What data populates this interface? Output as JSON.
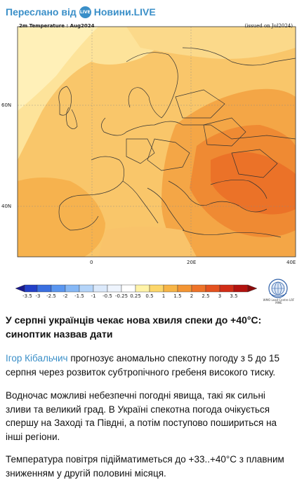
{
  "header": {
    "forward_label": "Переслано від",
    "channel_logo_text": "LIVE",
    "channel_name": "Новини.LIVE"
  },
  "map": {
    "title_left": "2m Temperature : Aug2024",
    "title_right": "(issued on Jul2024)",
    "lat_labels": [
      "60N",
      "40N"
    ],
    "lon_labels": [
      "0",
      "20E",
      "40E"
    ],
    "colorbar_ticks": [
      "-3.5",
      "-3",
      "-2.5",
      "-2",
      "-1.5",
      "-1",
      "-0.5",
      "-0.25",
      "0.25",
      "0.5",
      "1",
      "1.5",
      "2",
      "2.5",
      "3",
      "3.5"
    ],
    "colorbar_colors": [
      "#1a1a8c",
      "#2340c8",
      "#3a6fe0",
      "#5a96f0",
      "#86b8f6",
      "#b4d4f9",
      "#dbe9fb",
      "#ffffff",
      "#fff3a8",
      "#fcd66a",
      "#f7b547",
      "#f39534",
      "#ee7329",
      "#e4521f",
      "#d12d17",
      "#b3130f",
      "#8a0a0a"
    ],
    "wmo_caption": "WMO Lead Centre LRF MME"
  },
  "article": {
    "headline": "У серпні українців чекає нова хвиля спеки до +40°C: синоптик назвав дати",
    "author": "Ігор Кібальчич",
    "p1_rest": " прогнозує аномально спекотну погоду з 5 до 15 серпня через розвиток субтропічного гребеня високого тиску.",
    "p2": "Водночас можливі небезпечні погодні явища, такі як сильні зливи та великий град. В Україні спекотна погода очікується спершу на Заході та Півдні, а потім поступово пошириться на інші регіони.",
    "p3": "Температура повітря підійматиметься до +33..+40°C з плавним зниженням у другій половині місяця."
  }
}
